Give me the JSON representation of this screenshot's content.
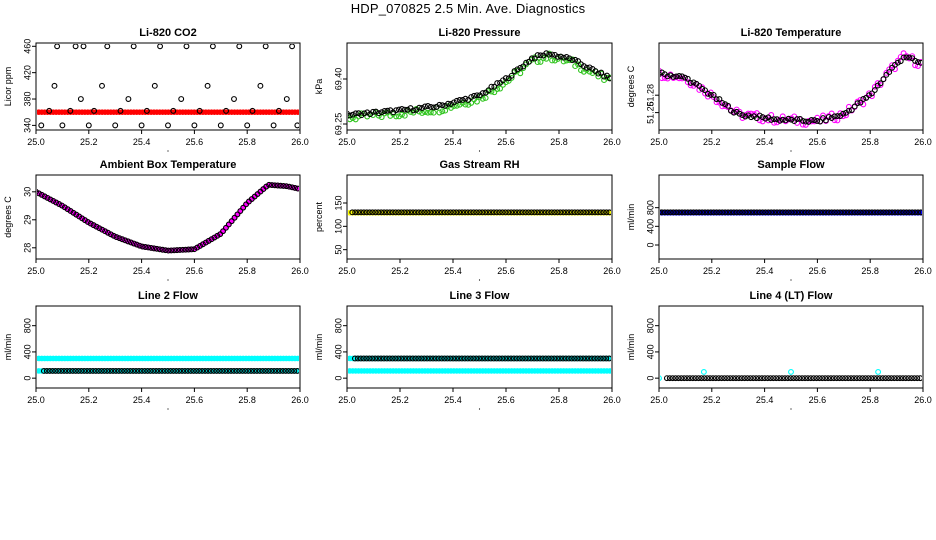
{
  "title": "HDP_070825  2.5 Min. Ave. Diagnostics",
  "colors": {
    "black": "#000000",
    "red": "#ff0000",
    "green": "#2ec41c",
    "magenta": "#ff00ff",
    "yellow": "#ffff00",
    "blue": "#0000ff",
    "cyan": "#00ffff"
  },
  "chart_data": [
    {
      "id": "co2",
      "type": "scatter",
      "title": "Li-820 CO2",
      "ylabel": "Licor ppm",
      "xlim": [
        25.0,
        26.0
      ],
      "ylim": [
        333,
        465
      ],
      "xticks": [
        "25.0",
        "25.2",
        "25.4",
        "25.6",
        "25.8",
        "26.0"
      ],
      "yticks": [
        "340",
        "380",
        "420",
        "460"
      ],
      "series": [
        {
          "name": "CO2 avg",
          "color": "red",
          "style": "filled",
          "shape": "flat",
          "range": [
            25.0,
            26.0
          ],
          "value": 360
        },
        {
          "name": "CO2 samples",
          "color": "black",
          "style": "open",
          "points": [
            [
              25.02,
              340
            ],
            [
              25.05,
              362
            ],
            [
              25.07,
              400
            ],
            [
              25.08,
              460
            ],
            [
              25.1,
              340
            ],
            [
              25.13,
              362
            ],
            [
              25.15,
              460
            ],
            [
              25.17,
              380
            ],
            [
              25.18,
              460
            ],
            [
              25.2,
              340
            ],
            [
              25.22,
              362
            ],
            [
              25.25,
              400
            ],
            [
              25.27,
              460
            ],
            [
              25.3,
              340
            ],
            [
              25.32,
              362
            ],
            [
              25.35,
              380
            ],
            [
              25.37,
              460
            ],
            [
              25.4,
              340
            ],
            [
              25.42,
              362
            ],
            [
              25.45,
              400
            ],
            [
              25.47,
              460
            ],
            [
              25.5,
              340
            ],
            [
              25.52,
              362
            ],
            [
              25.55,
              380
            ],
            [
              25.57,
              460
            ],
            [
              25.6,
              340
            ],
            [
              25.62,
              362
            ],
            [
              25.65,
              400
            ],
            [
              25.67,
              460
            ],
            [
              25.7,
              340
            ],
            [
              25.72,
              362
            ],
            [
              25.75,
              380
            ],
            [
              25.77,
              460
            ],
            [
              25.8,
              340
            ],
            [
              25.82,
              362
            ],
            [
              25.85,
              400
            ],
            [
              25.87,
              460
            ],
            [
              25.9,
              340
            ],
            [
              25.92,
              362
            ],
            [
              25.95,
              380
            ],
            [
              25.97,
              460
            ],
            [
              25.99,
              340
            ]
          ]
        }
      ]
    },
    {
      "id": "pressure",
      "type": "scatter",
      "title": "Li-820 Pressure",
      "ylabel": "kPa",
      "xlim": [
        25.0,
        26.0
      ],
      "ylim": [
        69.23,
        69.52
      ],
      "xticks": [
        "25.0",
        "25.2",
        "25.4",
        "25.6",
        "25.8",
        "26.0"
      ],
      "yticks": [
        "69.25",
        "69.40"
      ],
      "series": [
        {
          "name": "pressure spread",
          "color": "green",
          "style": "open",
          "shape": "curve",
          "range": [
            25.0,
            26.0
          ],
          "jitter": 0.012,
          "knots": [
            [
              25.0,
              69.27
            ],
            [
              25.2,
              69.285
            ],
            [
              25.35,
              69.3
            ],
            [
              25.5,
              69.335
            ],
            [
              25.6,
              69.39
            ],
            [
              25.7,
              69.46
            ],
            [
              25.76,
              69.475
            ],
            [
              25.85,
              69.455
            ],
            [
              25.95,
              69.41
            ],
            [
              26.0,
              69.39
            ]
          ]
        },
        {
          "name": "pressure",
          "color": "black",
          "style": "open",
          "shape": "curve",
          "range": [
            25.0,
            26.0
          ],
          "jitter": 0.005,
          "knots": [
            [
              25.0,
              69.28
            ],
            [
              25.2,
              69.295
            ],
            [
              25.35,
              69.31
            ],
            [
              25.5,
              69.345
            ],
            [
              25.6,
              69.4
            ],
            [
              25.7,
              69.47
            ],
            [
              25.76,
              69.485
            ],
            [
              25.85,
              69.465
            ],
            [
              25.95,
              69.42
            ],
            [
              26.0,
              69.4
            ]
          ]
        }
      ]
    },
    {
      "id": "temp",
      "type": "scatter",
      "title": "Li-820 Temperature",
      "ylabel": "degrees C",
      "xlim": [
        25.0,
        26.0
      ],
      "ylim": [
        51.24,
        51.34
      ],
      "xticks": [
        "25.0",
        "25.2",
        "25.4",
        "25.6",
        "25.8",
        "26.0"
      ],
      "yticks": [
        "51.26",
        "51.28"
      ],
      "series": [
        {
          "name": "temperature spread",
          "color": "magenta",
          "style": "open",
          "shape": "curve",
          "range": [
            25.0,
            26.0
          ],
          "jitter": 0.005,
          "knots": [
            [
              25.0,
              51.305
            ],
            [
              25.1,
              51.3
            ],
            [
              25.2,
              51.28
            ],
            [
              25.3,
              51.258
            ],
            [
              25.45,
              51.252
            ],
            [
              25.6,
              51.25
            ],
            [
              25.7,
              51.258
            ],
            [
              25.8,
              51.28
            ],
            [
              25.88,
              51.31
            ],
            [
              25.93,
              51.325
            ],
            [
              26.0,
              51.315
            ]
          ]
        },
        {
          "name": "temperature",
          "color": "black",
          "style": "open",
          "shape": "curve",
          "range": [
            25.0,
            26.0
          ],
          "jitter": 0.002,
          "knots": [
            [
              25.0,
              51.305
            ],
            [
              25.1,
              51.3
            ],
            [
              25.2,
              51.28
            ],
            [
              25.3,
              51.258
            ],
            [
              25.45,
              51.252
            ],
            [
              25.6,
              51.25
            ],
            [
              25.7,
              51.258
            ],
            [
              25.8,
              51.28
            ],
            [
              25.88,
              51.31
            ],
            [
              25.93,
              51.325
            ],
            [
              26.0,
              51.315
            ]
          ]
        }
      ]
    },
    {
      "id": "ambient",
      "type": "scatter",
      "title": "Ambient Box Temperature",
      "ylabel": "degrees C",
      "xlim": [
        25.0,
        26.0
      ],
      "ylim": [
        27.6,
        30.6
      ],
      "xticks": [
        "25.0",
        "25.2",
        "25.4",
        "25.6",
        "25.8",
        "26.0"
      ],
      "yticks": [
        "28",
        "29",
        "30"
      ],
      "series": [
        {
          "name": "ambient spread",
          "color": "magenta",
          "style": "filled",
          "shape": "curve",
          "range": [
            25.0,
            26.0
          ],
          "jitter": 0.0,
          "knots": [
            [
              25.0,
              30.0
            ],
            [
              25.1,
              29.5
            ],
            [
              25.2,
              28.9
            ],
            [
              25.3,
              28.4
            ],
            [
              25.4,
              28.05
            ],
            [
              25.5,
              27.9
            ],
            [
              25.6,
              27.95
            ],
            [
              25.7,
              28.5
            ],
            [
              25.8,
              29.6
            ],
            [
              25.88,
              30.25
            ],
            [
              25.95,
              30.2
            ],
            [
              26.0,
              30.1
            ]
          ]
        },
        {
          "name": "ambient",
          "color": "black",
          "style": "open",
          "shape": "curve",
          "range": [
            25.0,
            26.0
          ],
          "jitter": 0.0,
          "knots": [
            [
              25.0,
              30.0
            ],
            [
              25.1,
              29.5
            ],
            [
              25.2,
              28.9
            ],
            [
              25.3,
              28.4
            ],
            [
              25.4,
              28.05
            ],
            [
              25.5,
              27.9
            ],
            [
              25.6,
              27.95
            ],
            [
              25.7,
              28.5
            ],
            [
              25.8,
              29.6
            ],
            [
              25.88,
              30.25
            ],
            [
              25.95,
              30.2
            ],
            [
              26.0,
              30.1
            ]
          ]
        }
      ]
    },
    {
      "id": "rh",
      "type": "scatter",
      "title": "Gas Stream RH",
      "ylabel": "percent",
      "xlim": [
        25.0,
        26.0
      ],
      "ylim": [
        30,
        210
      ],
      "xticks": [
        "25.0",
        "25.2",
        "25.4",
        "25.6",
        "25.8",
        "26.0"
      ],
      "yticks": [
        "50",
        "100",
        "150"
      ],
      "series": [
        {
          "name": "RH spread",
          "color": "yellow",
          "style": "filled",
          "shape": "flat",
          "range": [
            25.0,
            26.0
          ],
          "value": 129
        },
        {
          "name": "RH",
          "color": "black",
          "style": "open",
          "shape": "flat",
          "range": [
            25.02,
            26.0
          ],
          "value": 130
        }
      ]
    },
    {
      "id": "sample",
      "type": "scatter",
      "title": "Sample Flow",
      "ylabel": "ml/min",
      "xlim": [
        25.0,
        26.0
      ],
      "ylim": [
        -300,
        1500
      ],
      "xticks": [
        "25.0",
        "25.2",
        "25.4",
        "25.6",
        "25.8",
        "26.0"
      ],
      "yticks": [
        "0",
        "400",
        "800"
      ],
      "series": [
        {
          "name": "sample flow spread",
          "color": "blue",
          "style": "filled",
          "shape": "flat",
          "range": [
            25.0,
            26.0
          ],
          "value": 690
        },
        {
          "name": "sample flow",
          "color": "black",
          "style": "open",
          "shape": "flat",
          "range": [
            25.0,
            26.0
          ],
          "value": 700
        }
      ]
    },
    {
      "id": "line2",
      "type": "scatter",
      "title": "Line 2 Flow",
      "ylabel": "ml/min",
      "xlim": [
        25.0,
        26.0
      ],
      "ylim": [
        -150,
        1100
      ],
      "xticks": [
        "25.0",
        "25.2",
        "25.4",
        "25.6",
        "25.8",
        "26.0"
      ],
      "yticks": [
        "0",
        "400",
        "800"
      ],
      "series": [
        {
          "name": "line 2 upper",
          "color": "cyan",
          "style": "filled",
          "shape": "flat",
          "range": [
            25.0,
            26.0
          ],
          "value": 300
        },
        {
          "name": "line 2 lower fill",
          "color": "cyan",
          "style": "filled",
          "shape": "flat",
          "range": [
            25.0,
            26.0
          ],
          "value": 110
        },
        {
          "name": "line 2",
          "color": "black",
          "style": "open",
          "shape": "flat",
          "range": [
            25.03,
            26.0
          ],
          "value": 110
        }
      ]
    },
    {
      "id": "line3",
      "type": "scatter",
      "title": "Line 3 Flow",
      "ylabel": "ml/min",
      "xlim": [
        25.0,
        26.0
      ],
      "ylim": [
        -150,
        1100
      ],
      "xticks": [
        "25.0",
        "25.2",
        "25.4",
        "25.6",
        "25.8",
        "26.0"
      ],
      "yticks": [
        "0",
        "400",
        "800"
      ],
      "series": [
        {
          "name": "line 3 lower",
          "color": "cyan",
          "style": "filled",
          "shape": "flat",
          "range": [
            25.0,
            26.0
          ],
          "value": 110
        },
        {
          "name": "line 3 upper fill",
          "color": "cyan",
          "style": "filled",
          "shape": "flat",
          "range": [
            25.0,
            26.0
          ],
          "value": 300
        },
        {
          "name": "line 3",
          "color": "black",
          "style": "open",
          "shape": "flat",
          "range": [
            25.03,
            26.0
          ],
          "value": 300
        }
      ]
    },
    {
      "id": "line4",
      "type": "scatter",
      "title": "Line 4 (LT) Flow",
      "ylabel": "ml/min",
      "xlim": [
        25.0,
        26.0
      ],
      "ylim": [
        -150,
        1100
      ],
      "xticks": [
        "25.0",
        "25.2",
        "25.4",
        "25.6",
        "25.8",
        "26.0"
      ],
      "yticks": [
        "0",
        "400",
        "800"
      ],
      "series": [
        {
          "name": "line 4",
          "color": "black",
          "style": "open",
          "shape": "flat",
          "range": [
            25.03,
            26.0
          ],
          "value": 0
        },
        {
          "name": "line 4 spikes",
          "color": "cyan",
          "style": "open",
          "points": [
            [
              25.0,
              0
            ],
            [
              25.17,
              95
            ],
            [
              25.5,
              95
            ],
            [
              25.83,
              95
            ]
          ]
        }
      ]
    }
  ]
}
